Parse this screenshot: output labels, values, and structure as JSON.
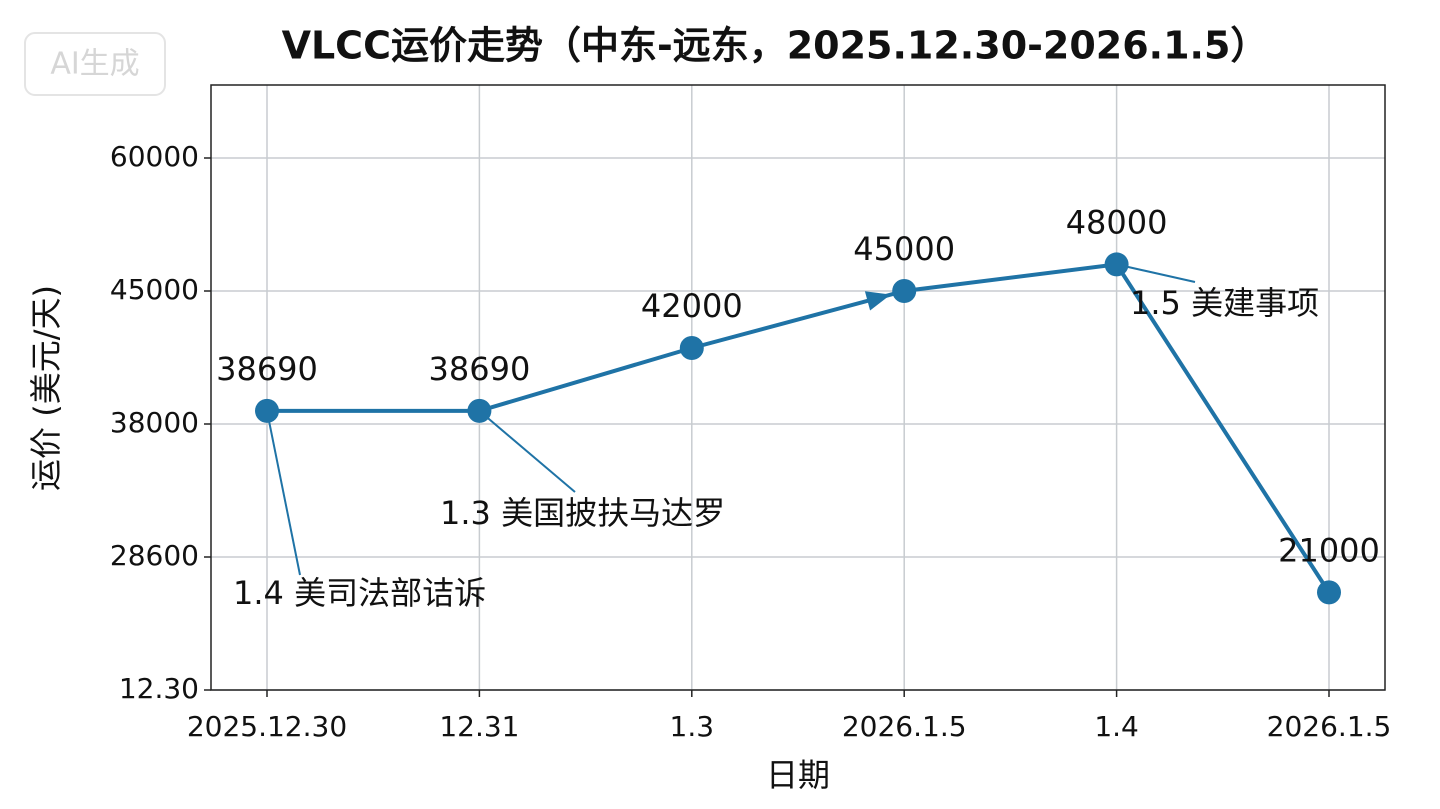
{
  "chart_data": {
    "type": "line",
    "title": "VLCC运价走势（中东-远东，2025.12.30-2026.1.5）",
    "watermark": "AI生成",
    "xlabel": "日期",
    "ylabel": "运价 (美元/天)",
    "categories": [
      "2025.12.30",
      "12.31",
      "1.3",
      "2026.1.5",
      "1.4",
      "2026.1.5"
    ],
    "series": [
      {
        "name": "运价",
        "color": "#1f73a6",
        "values": [
          38690,
          38690,
          42000,
          45000,
          48000,
          21000
        ]
      }
    ],
    "ylim": [
      12.3,
      68500
    ],
    "yticks": [
      {
        "value": 12.3,
        "label": "12.30"
      },
      28600,
      38000,
      45000,
      60000
    ],
    "grid": true,
    "annotations": [
      "1.4 美司法部诘诉",
      "1.3 美国披扶马达罗",
      "1.5 美建事项"
    ]
  }
}
